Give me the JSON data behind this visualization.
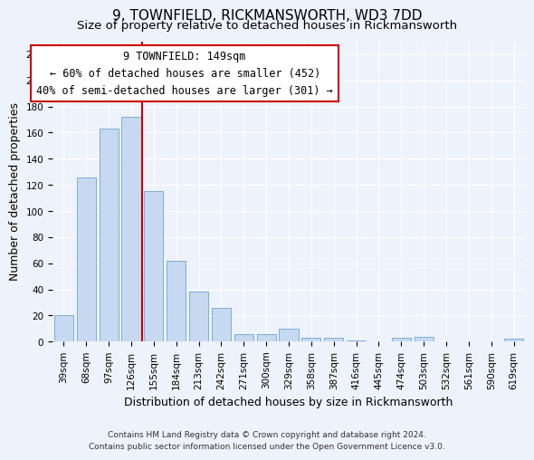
{
  "title": "9, TOWNFIELD, RICKMANSWORTH, WD3 7DD",
  "subtitle": "Size of property relative to detached houses in Rickmansworth",
  "xlabel": "Distribution of detached houses by size in Rickmansworth",
  "ylabel": "Number of detached properties",
  "footer_line1": "Contains HM Land Registry data © Crown copyright and database right 2024.",
  "footer_line2": "Contains public sector information licensed under the Open Government Licence v3.0.",
  "bar_labels": [
    "39sqm",
    "68sqm",
    "97sqm",
    "126sqm",
    "155sqm",
    "184sqm",
    "213sqm",
    "242sqm",
    "271sqm",
    "300sqm",
    "329sqm",
    "358sqm",
    "387sqm",
    "416sqm",
    "445sqm",
    "474sqm",
    "503sqm",
    "532sqm",
    "561sqm",
    "590sqm",
    "619sqm"
  ],
  "bar_values": [
    20,
    126,
    163,
    172,
    115,
    62,
    38,
    26,
    6,
    6,
    10,
    3,
    3,
    1,
    0,
    3,
    4,
    0,
    0,
    0,
    2
  ],
  "bar_color": "#c6d9f0",
  "bar_edgecolor": "#7bafd4",
  "vline_color": "#cc0000",
  "vline_pos": 3.5,
  "ylim": [
    0,
    230
  ],
  "yticks": [
    0,
    20,
    40,
    60,
    80,
    100,
    120,
    140,
    160,
    180,
    200,
    220
  ],
  "annotation_title": "9 TOWNFIELD: 149sqm",
  "annotation_line1": "← 60% of detached houses are smaller (452)",
  "annotation_line2": "40% of semi-detached houses are larger (301) →",
  "annotation_box_facecolor": "#ffffff",
  "annotation_box_edgecolor": "#cc0000",
  "bg_color": "#eef2fb",
  "grid_color": "#ffffff",
  "title_fontsize": 11,
  "subtitle_fontsize": 9.5,
  "axis_label_fontsize": 9,
  "tick_fontsize": 7.5,
  "annotation_fontsize": 8.5,
  "footer_fontsize": 6.5
}
